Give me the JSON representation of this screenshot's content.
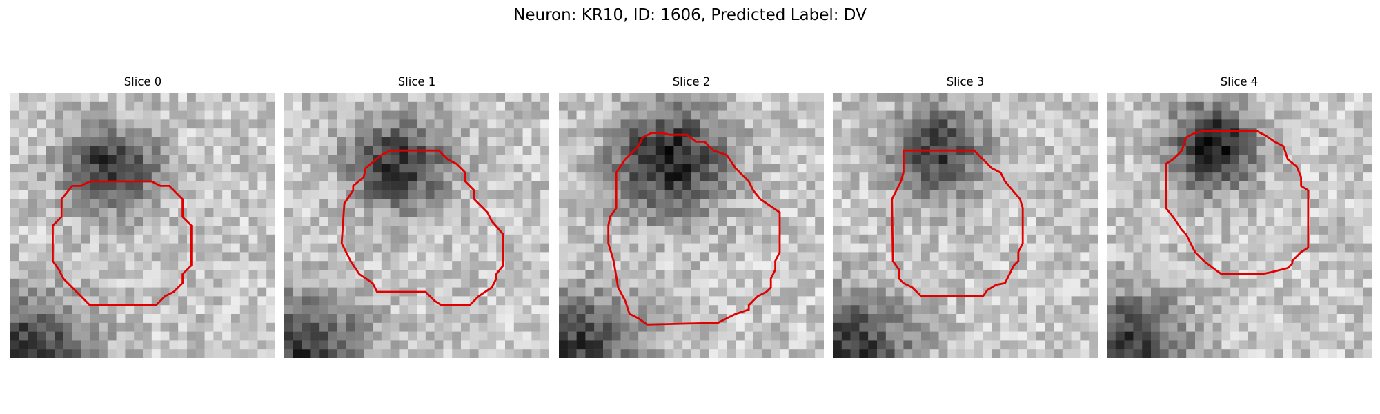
{
  "figure": {
    "title": "Neuron: KR10, ID: 1606, Predicted Label: DV"
  },
  "panels": [
    {
      "title": "Slice 0",
      "blob": {
        "cx": 11.5,
        "cy": 8.5,
        "rx": 6.5,
        "ry": 5.8,
        "depth": 0.6
      },
      "outline_color": "#e00000"
    },
    {
      "title": "Slice 1",
      "blob": {
        "cx": 13.0,
        "cy": 8.0,
        "rx": 7.0,
        "ry": 6.5,
        "depth": 0.58
      },
      "outline_color": "#e00000"
    },
    {
      "title": "Slice 2",
      "blob": {
        "cx": 12.5,
        "cy": 7.5,
        "rx": 8.0,
        "ry": 7.8,
        "depth": 0.65
      },
      "outline_color": "#e00000"
    },
    {
      "title": "Slice 3",
      "blob": {
        "cx": 12.0,
        "cy": 6.5,
        "rx": 6.5,
        "ry": 6.5,
        "depth": 0.55
      },
      "outline_color": "#e00000"
    },
    {
      "title": "Slice 4",
      "blob": {
        "cx": 12.0,
        "cy": 6.0,
        "rx": 6.0,
        "ry": 6.0,
        "depth": 0.72
      },
      "outline_color": "#e00000"
    }
  ]
}
